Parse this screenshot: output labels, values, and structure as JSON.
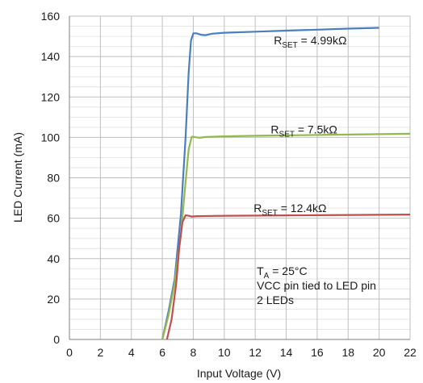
{
  "chart_data": {
    "type": "line",
    "xlabel": "Input Voltage (V)",
    "ylabel": "LED Current (mA)",
    "xlim": [
      0,
      22
    ],
    "ylim": [
      0,
      160
    ],
    "xticks": [
      0,
      2,
      4,
      6,
      8,
      10,
      12,
      14,
      16,
      18,
      20,
      22
    ],
    "yticks": [
      0,
      20,
      40,
      60,
      80,
      100,
      120,
      140,
      160
    ],
    "grid": true,
    "series": [
      {
        "label_main": "R",
        "label_sub": "SET",
        "label_rest": " = 4.99kΩ",
        "color": "#4a7ebf",
        "x": [
          6.0,
          6.4,
          6.8,
          7.2,
          7.5,
          7.7,
          7.85,
          8.0,
          8.2,
          8.5,
          8.8,
          9.2,
          10,
          12,
          14,
          16,
          18,
          20
        ],
        "y": [
          0,
          14,
          30,
          62,
          100,
          132,
          148,
          151.5,
          151.5,
          150.8,
          150.6,
          151.3,
          151.8,
          152.3,
          152.8,
          153.3,
          153.8,
          154.2
        ]
      },
      {
        "label_main": "R",
        "label_sub": "SET",
        "label_rest": " = 7.5kΩ",
        "color": "#93b94e",
        "x": [
          6.0,
          6.4,
          6.8,
          7.2,
          7.5,
          7.7,
          7.9,
          8.1,
          8.4,
          8.8,
          10,
          12,
          14,
          16,
          18,
          20,
          22
        ],
        "y": [
          0,
          12,
          28,
          52,
          78,
          94,
          100.3,
          100.2,
          99.8,
          100.2,
          100.5,
          100.8,
          101.0,
          101.2,
          101.4,
          101.6,
          101.8
        ]
      },
      {
        "label_main": "R",
        "label_sub": "SET",
        "label_rest": " = 12.4kΩ",
        "color": "#c0504d",
        "x": [
          6.3,
          6.6,
          6.9,
          7.1,
          7.3,
          7.5,
          7.7,
          7.9,
          8.2,
          10,
          12,
          14,
          16,
          18,
          20,
          22
        ],
        "y": [
          0,
          10,
          28,
          46,
          58,
          61.5,
          61.2,
          60.8,
          61.0,
          61.2,
          61.3,
          61.4,
          61.5,
          61.6,
          61.7,
          61.8
        ]
      }
    ],
    "annotation": {
      "line1_main": "T",
      "line1_sub": "A",
      "line1_rest": " = 25°C",
      "line2": "VCC pin tied to LED pin",
      "line3": "2 LEDs"
    }
  }
}
